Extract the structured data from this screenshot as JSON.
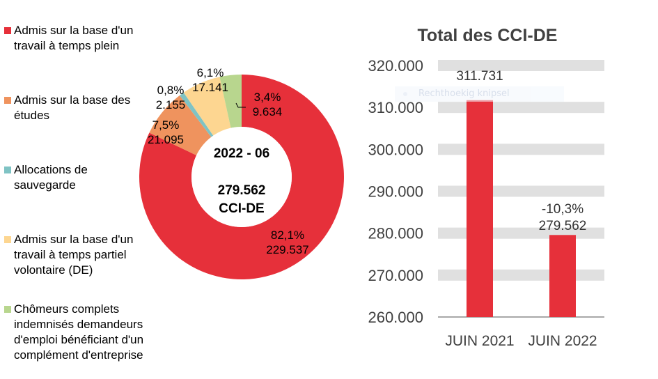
{
  "colors": {
    "red": "#e6303a",
    "orange": "#ef935e",
    "teal": "#7fc3c4",
    "yellow": "#fdd691",
    "green": "#b8d68e",
    "grid": "#e0e0e0",
    "axis": "#8c8c8c",
    "tick_text": "#404040",
    "title_text": "#404040"
  },
  "legend": [
    {
      "label": "Admis sur la base d'un\ntravail à temps plein",
      "color": "#e6303a"
    },
    {
      "label": "Admis sur la base des\nétudes",
      "color": "#ef935e"
    },
    {
      "label": "Allocations de\nsauvegarde",
      "color": "#7fc3c4"
    },
    {
      "label": "Admis sur la base d'un\ntravail à temps partiel\nvolontaire (DE)",
      "color": "#fdd691"
    },
    {
      "label": "Chômeurs complets\nindemnisés demandeurs\nd'emploi bénéficiant d'un\ncomplément d'entreprise",
      "color": "#b8d68e"
    }
  ],
  "tooltip": {
    "text": "Rechthoekig knipsel"
  },
  "chart_data": [
    {
      "type": "pie",
      "variant": "donut",
      "center_label": {
        "period": "2022 - 06",
        "total": "279.562",
        "unit": "CCI-DE"
      },
      "slices": [
        {
          "name": "Admis sur la base d'un travail à temps plein",
          "value": 229537,
          "value_label": "229.537",
          "percent_label": "82,1%",
          "color": "#e6303a"
        },
        {
          "name": "Admis sur la base des études",
          "value": 21095,
          "value_label": "21.095",
          "percent_label": "7,5%",
          "color": "#ef935e"
        },
        {
          "name": "Allocations de sauvegarde",
          "value": 2155,
          "value_label": "2.155",
          "percent_label": "0,8%",
          "color": "#7fc3c4"
        },
        {
          "name": "Admis sur la base d'un travail à temps partiel volontaire (DE)",
          "value": 17141,
          "value_label": "17.141",
          "percent_label": "6,1%",
          "color": "#fdd691"
        },
        {
          "name": "Chômeurs complets indemnisés demandeurs d'emploi bénéficiant d'un complément d'entreprise",
          "value": 9634,
          "value_label": "9.634",
          "percent_label": "3,4%",
          "color": "#b8d68e"
        }
      ],
      "start": "top, clockwise from 12 o'clock with the first slice; smaller slices counter-clockwise from top",
      "legend_position": "left"
    },
    {
      "type": "bar",
      "title": "Total des CCI-DE",
      "categories": [
        "JUIN 2021",
        "JUIN 2022"
      ],
      "values": [
        311731,
        279562
      ],
      "data_labels": [
        "311.731",
        "279.562"
      ],
      "change_labels": [
        "",
        "-10,3%"
      ],
      "xlabel": "",
      "ylabel": "",
      "ylim": [
        260000,
        320000
      ],
      "yticks": [
        260000,
        270000,
        280000,
        290000,
        300000,
        310000,
        320000
      ],
      "ytick_labels": [
        "260.000",
        "270.000",
        "280.000",
        "290.000",
        "300.000",
        "310.000",
        "320.000"
      ],
      "grid": true,
      "color": "#e6303a"
    }
  ]
}
